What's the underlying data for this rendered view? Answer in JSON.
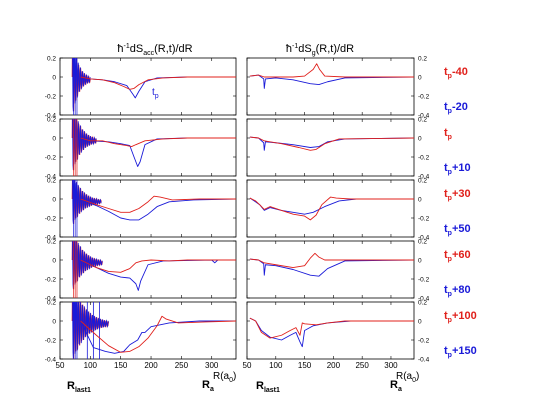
{
  "figure": {
    "left_title": "ħ⁻¹dSₐₑₑ(R,t)/dR",
    "left_title_main": "ħ",
    "left_title_sup": "-1",
    "left_title_rest": "dS",
    "left_title_sub": "acc",
    "left_title_tail": "(R,t)/dR",
    "right_title_main": "ħ",
    "right_title_sup": "-1",
    "right_title_rest": "dS",
    "right_title_sub": "g",
    "right_title_tail": "(R,t)/dR",
    "x_ticks": [
      "50",
      "100",
      "150",
      "200",
      "250",
      "300"
    ],
    "y_ticks_left": [
      "0.2",
      "0",
      "-0.2",
      "-0.4"
    ],
    "y_ticks_right": [
      "0.2",
      "0",
      "-0.2",
      "-0.4"
    ],
    "x_axis_label_R": "R(a",
    "x_axis_label_sub": "0",
    "x_axis_label_close": ")",
    "marker_rlast_main": "R",
    "marker_rlast_sub": "last1",
    "marker_ra_main": "R",
    "marker_ra_sub": "a",
    "annotation_tp_main": "t",
    "annotation_tp_sub": "p"
  },
  "colors": {
    "red": "#e0201b",
    "blue": "#1a1ad8",
    "axis": "#000000"
  },
  "chart_data": [
    {
      "type": "line",
      "panel": "left",
      "xlim": [
        50,
        340
      ],
      "ylim": [
        -0.4,
        0.2
      ],
      "rows": [
        {
          "red_label": "",
          "blue_label": ""
        },
        {
          "red_label": "",
          "blue_label": ""
        },
        {
          "red_label": "",
          "blue_label": ""
        },
        {
          "red_label": "",
          "blue_label": ""
        },
        {
          "red_label": "",
          "blue_label": ""
        }
      ]
    },
    {
      "type": "line",
      "panel": "right",
      "xlim": [
        50,
        340
      ],
      "ylim": [
        -0.4,
        0.2
      ],
      "rows": [
        {
          "red_main": "t",
          "red_sub": "p",
          "red_suffix": "-40",
          "blue_main": "t",
          "blue_sub": "p",
          "blue_suffix": "-20"
        },
        {
          "red_main": "t",
          "red_sub": "p",
          "red_suffix": "",
          "blue_main": "t",
          "blue_sub": "p",
          "blue_suffix": "+10"
        },
        {
          "red_main": "t",
          "red_sub": "p",
          "red_suffix": "+30",
          "blue_main": "t",
          "blue_sub": "p",
          "blue_suffix": "+50"
        },
        {
          "red_main": "t",
          "red_sub": "p",
          "red_suffix": "+60",
          "blue_main": "t",
          "blue_sub": "p",
          "blue_suffix": "+80"
        },
        {
          "red_main": "t",
          "red_sub": "p",
          "red_suffix": "+100",
          "blue_main": "t",
          "blue_sub": "p",
          "blue_suffix": "+150"
        }
      ]
    }
  ],
  "curves": {
    "left": [
      {
        "red": [
          [
            84,
            0
          ],
          [
            100,
            -0.02
          ],
          [
            120,
            -0.03
          ],
          [
            140,
            -0.06
          ],
          [
            155,
            -0.1
          ],
          [
            165,
            -0.13
          ],
          [
            172,
            -0.12
          ],
          [
            180,
            -0.08
          ],
          [
            195,
            -0.03
          ],
          [
            220,
            -0.01
          ],
          [
            260,
            0
          ],
          [
            340,
            0
          ]
        ],
        "blue": [
          [
            84,
            0
          ],
          [
            100,
            -0.02
          ],
          [
            120,
            -0.03
          ],
          [
            140,
            -0.05
          ],
          [
            160,
            -0.09
          ],
          [
            170,
            -0.18
          ],
          [
            174,
            -0.22
          ],
          [
            180,
            -0.15
          ],
          [
            190,
            -0.05
          ],
          [
            210,
            -0.01
          ],
          [
            260,
            0
          ],
          [
            340,
            0
          ]
        ],
        "osc_end": 100,
        "osc_amp": 0.45
      },
      {
        "red": [
          [
            84,
            0
          ],
          [
            100,
            -0.03
          ],
          [
            120,
            -0.03
          ],
          [
            140,
            -0.06
          ],
          [
            160,
            -0.08
          ],
          [
            168,
            -0.09
          ],
          [
            175,
            -0.07
          ],
          [
            190,
            -0.03
          ],
          [
            220,
            -0.01
          ],
          [
            260,
            0
          ],
          [
            340,
            0
          ]
        ],
        "blue": [
          [
            84,
            0
          ],
          [
            100,
            -0.03
          ],
          [
            130,
            -0.04
          ],
          [
            150,
            -0.06
          ],
          [
            165,
            -0.08
          ],
          [
            172,
            -0.2
          ],
          [
            178,
            -0.3
          ],
          [
            182,
            -0.25
          ],
          [
            190,
            -0.07
          ],
          [
            210,
            -0.01
          ],
          [
            260,
            0
          ],
          [
            340,
            0
          ]
        ],
        "osc_end": 110,
        "osc_amp": 0.4
      },
      {
        "red": [
          [
            84,
            0
          ],
          [
            110,
            -0.06
          ],
          [
            130,
            -0.1
          ],
          [
            150,
            -0.14
          ],
          [
            165,
            -0.14
          ],
          [
            180,
            -0.1
          ],
          [
            195,
            -0.03
          ],
          [
            205,
            0.03
          ],
          [
            215,
            0.02
          ],
          [
            235,
            -0.01
          ],
          [
            280,
            0
          ],
          [
            340,
            0
          ]
        ],
        "blue": [
          [
            84,
            0
          ],
          [
            110,
            -0.07
          ],
          [
            130,
            -0.13
          ],
          [
            150,
            -0.2
          ],
          [
            165,
            -0.22
          ],
          [
            180,
            -0.22
          ],
          [
            195,
            -0.16
          ],
          [
            210,
            -0.08
          ],
          [
            230,
            -0.03
          ],
          [
            270,
            -0.01
          ],
          [
            340,
            0
          ]
        ],
        "osc_end": 118,
        "osc_amp": 0.3
      },
      {
        "red": [
          [
            84,
            0
          ],
          [
            110,
            -0.08
          ],
          [
            130,
            -0.12
          ],
          [
            150,
            -0.13
          ],
          [
            165,
            -0.09
          ],
          [
            175,
            -0.03
          ],
          [
            185,
            -0.01
          ],
          [
            200,
            0
          ],
          [
            230,
            -0.01
          ],
          [
            260,
            0
          ],
          [
            340,
            0
          ]
        ],
        "blue": [
          [
            84,
            0
          ],
          [
            110,
            -0.08
          ],
          [
            130,
            -0.14
          ],
          [
            150,
            -0.18
          ],
          [
            165,
            -0.19
          ],
          [
            175,
            -0.25
          ],
          [
            179,
            -0.32
          ],
          [
            183,
            -0.22
          ],
          [
            195,
            -0.05
          ],
          [
            220,
            -0.01
          ],
          [
            300,
            0
          ],
          [
            305,
            -0.03
          ],
          [
            310,
            0
          ],
          [
            340,
            0
          ]
        ],
        "osc_end": 120,
        "osc_amp": 0.35
      },
      {
        "red": [
          [
            84,
            0
          ],
          [
            110,
            -0.15
          ],
          [
            130,
            -0.26
          ],
          [
            150,
            -0.33
          ],
          [
            165,
            -0.32
          ],
          [
            180,
            -0.27
          ],
          [
            195,
            -0.18
          ],
          [
            210,
            -0.05
          ],
          [
            218,
            0.05
          ],
          [
            225,
            0.02
          ],
          [
            245,
            -0.02
          ],
          [
            290,
            -0.01
          ],
          [
            340,
            0
          ]
        ],
        "blue": [
          [
            84,
            0
          ],
          [
            105,
            -0.28
          ],
          [
            125,
            -0.32
          ],
          [
            140,
            -0.34
          ],
          [
            155,
            -0.32
          ],
          [
            165,
            -0.25
          ],
          [
            178,
            -0.2
          ],
          [
            185,
            -0.12
          ],
          [
            190,
            -0.12
          ],
          [
            200,
            -0.06
          ],
          [
            230,
            -0.02
          ],
          [
            280,
            0
          ],
          [
            340,
            0
          ]
        ],
        "osc_end": 130,
        "osc_amp": 0.45
      }
    ],
    "right": [
      {
        "red": [
          [
            55,
            0.01
          ],
          [
            70,
            0.02
          ],
          [
            80,
            0.0
          ],
          [
            100,
            0.0
          ],
          [
            130,
            0.0
          ],
          [
            150,
            0.01
          ],
          [
            165,
            0.08
          ],
          [
            171,
            0.14
          ],
          [
            176,
            0.08
          ],
          [
            185,
            0.01
          ],
          [
            220,
            0
          ],
          [
            340,
            0
          ]
        ],
        "blue": [
          [
            55,
            0.01
          ],
          [
            70,
            0.02
          ],
          [
            79,
            -0.02
          ],
          [
            80,
            -0.12
          ],
          [
            82,
            -0.02
          ],
          [
            100,
            -0.01
          ],
          [
            130,
            -0.03
          ],
          [
            160,
            -0.07
          ],
          [
            175,
            -0.08
          ],
          [
            190,
            -0.05
          ],
          [
            220,
            -0.01
          ],
          [
            340,
            0
          ]
        ],
        "osc_end": 0,
        "osc_amp": 0
      },
      {
        "red": [
          [
            55,
            0.01
          ],
          [
            70,
            0.0
          ],
          [
            80,
            -0.03
          ],
          [
            90,
            -0.04
          ],
          [
            110,
            -0.06
          ],
          [
            140,
            -0.1
          ],
          [
            160,
            -0.13
          ],
          [
            170,
            -0.12
          ],
          [
            185,
            -0.06
          ],
          [
            210,
            -0.01
          ],
          [
            340,
            0
          ]
        ],
        "blue": [
          [
            55,
            0.01
          ],
          [
            70,
            0.0
          ],
          [
            79,
            -0.05
          ],
          [
            80,
            -0.13
          ],
          [
            82,
            -0.04
          ],
          [
            100,
            -0.05
          ],
          [
            130,
            -0.07
          ],
          [
            160,
            -0.1
          ],
          [
            175,
            -0.09
          ],
          [
            190,
            -0.04
          ],
          [
            220,
            -0.01
          ],
          [
            340,
            0
          ]
        ],
        "osc_end": 0,
        "osc_amp": 0
      },
      {
        "red": [
          [
            55,
            0.01
          ],
          [
            65,
            -0.02
          ],
          [
            72,
            -0.06
          ],
          [
            80,
            -0.11
          ],
          [
            90,
            -0.08
          ],
          [
            110,
            -0.12
          ],
          [
            130,
            -0.16
          ],
          [
            150,
            -0.18
          ],
          [
            160,
            -0.22
          ],
          [
            170,
            -0.17
          ],
          [
            180,
            -0.06
          ],
          [
            195,
            0.02
          ],
          [
            205,
            0.01
          ],
          [
            230,
            0
          ],
          [
            340,
            0
          ]
        ],
        "blue": [
          [
            55,
            0.01
          ],
          [
            65,
            -0.03
          ],
          [
            72,
            -0.06
          ],
          [
            80,
            -0.12
          ],
          [
            90,
            -0.09
          ],
          [
            110,
            -0.12
          ],
          [
            130,
            -0.14
          ],
          [
            150,
            -0.16
          ],
          [
            165,
            -0.14
          ],
          [
            185,
            -0.08
          ],
          [
            210,
            -0.02
          ],
          [
            240,
            0
          ],
          [
            340,
            0
          ]
        ],
        "osc_end": 0,
        "osc_amp": 0
      },
      {
        "red": [
          [
            55,
            0.01
          ],
          [
            70,
            0.0
          ],
          [
            80,
            -0.03
          ],
          [
            100,
            -0.05
          ],
          [
            130,
            -0.08
          ],
          [
            150,
            -0.06
          ],
          [
            160,
            0.02
          ],
          [
            168,
            0.07
          ],
          [
            175,
            0.03
          ],
          [
            185,
            0.0
          ],
          [
            210,
            0
          ],
          [
            340,
            0
          ]
        ],
        "blue": [
          [
            55,
            0.01
          ],
          [
            70,
            0.0
          ],
          [
            79,
            -0.04
          ],
          [
            80,
            -0.16
          ],
          [
            82,
            -0.05
          ],
          [
            100,
            -0.06
          ],
          [
            130,
            -0.1
          ],
          [
            160,
            -0.16
          ],
          [
            175,
            -0.17
          ],
          [
            190,
            -0.09
          ],
          [
            220,
            -0.01
          ],
          [
            340,
            0
          ]
        ],
        "osc_end": 0,
        "osc_amp": 0
      },
      {
        "red": [
          [
            55,
            0.03
          ],
          [
            65,
            0.0
          ],
          [
            75,
            -0.12
          ],
          [
            90,
            -0.18
          ],
          [
            110,
            -0.15
          ],
          [
            125,
            -0.1
          ],
          [
            135,
            -0.07
          ],
          [
            142,
            -0.15
          ],
          [
            146,
            -0.02
          ],
          [
            150,
            -0.03
          ],
          [
            170,
            -0.04
          ],
          [
            190,
            -0.02
          ],
          [
            220,
            0
          ],
          [
            340,
            0
          ]
        ],
        "blue": [
          [
            55,
            0.03
          ],
          [
            65,
            0.0
          ],
          [
            75,
            -0.1
          ],
          [
            90,
            -0.17
          ],
          [
            110,
            -0.2
          ],
          [
            125,
            -0.15
          ],
          [
            135,
            -0.12
          ],
          [
            142,
            -0.22
          ],
          [
            146,
            -0.27
          ],
          [
            150,
            -0.1
          ],
          [
            165,
            -0.05
          ],
          [
            190,
            -0.02
          ],
          [
            230,
            0
          ],
          [
            340,
            0
          ]
        ],
        "osc_end": 0,
        "osc_amp": 0
      }
    ]
  }
}
